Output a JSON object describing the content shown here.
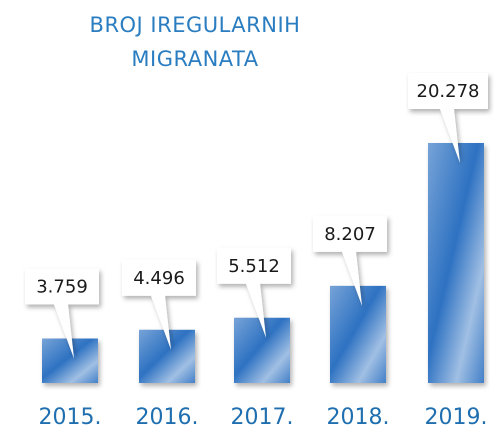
{
  "chart_data": {
    "type": "bar",
    "title": "BROJ IREGULARNIH MIGRANATA",
    "categories": [
      "2015.",
      "2016.",
      "2017.",
      "2018.",
      "2019."
    ],
    "values": [
      3759,
      4496,
      5512,
      8207,
      20278
    ],
    "value_labels": [
      "3.759",
      "4.496",
      "5.512",
      "8.207",
      "20.278"
    ],
    "color": "#2f72c2"
  }
}
